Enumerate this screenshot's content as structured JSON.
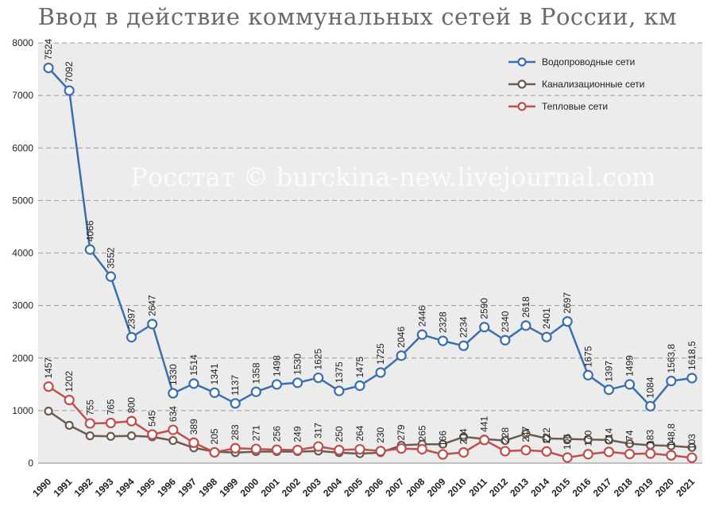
{
  "title": "Ввод в действие коммунальных сетей в России, км",
  "watermark": "Росстат © burckina-new.livejournal.com",
  "colors": {
    "water": "#3b6fb0",
    "sewer": "#6b5b51",
    "heat": "#c0504d",
    "plot_bg": "#ececec",
    "grid": "#9a9a9a"
  },
  "chart_data": {
    "type": "line",
    "title": "Ввод в действие коммунальных сетей в России, км",
    "xlabel": "",
    "ylabel": "",
    "ylim": [
      0,
      8000
    ],
    "yticks": [
      "0",
      "1000",
      "2000",
      "3000",
      "4000",
      "5000",
      "6000",
      "7000",
      "8000"
    ],
    "grid": true,
    "legend_position": "top-right",
    "categories": [
      "1990",
      "1991",
      "1992",
      "1993",
      "1994",
      "1995",
      "1996",
      "1997",
      "1998",
      "1999",
      "2000",
      "2001",
      "2002",
      "2003",
      "2004",
      "2005",
      "2006",
      "2007",
      "2008",
      "2009",
      "2010",
      "2011",
      "2012",
      "2013",
      "2014",
      "2015",
      "2016",
      "2017",
      "2018",
      "2019",
      "2020",
      "2021"
    ],
    "series": [
      {
        "name": "Водопроводные сети",
        "values": [
          7524,
          7092,
          4066,
          3552,
          2397,
          2647,
          1330,
          1514,
          1341,
          1137,
          1358,
          1498,
          1530,
          1625,
          1375,
          1475,
          1725,
          2046,
          2446,
          2328,
          2234,
          2590,
          2340,
          2618,
          2401,
          2697,
          1675,
          1397,
          1499,
          1084,
          1563.8,
          1618.5
        ],
        "labels": [
          "7524",
          "7092",
          "4066",
          "3552",
          "2397",
          "2647",
          "1330",
          "1514",
          "1341",
          "1137",
          "1358",
          "1498",
          "1530",
          "1625",
          "1375",
          "1475",
          "1725",
          "2046",
          "2446",
          "2328",
          "2234",
          "2590",
          "2340",
          "2618",
          "2401",
          "2697",
          "1675",
          "1397",
          "1499",
          "1084",
          "1563,8",
          "1618,5"
        ]
      },
      {
        "name": "Канализационные сети",
        "values": [
          990,
          720,
          520,
          510,
          520,
          500,
          430,
          290,
          220,
          200,
          220,
          220,
          220,
          230,
          200,
          180,
          200,
          340,
          360,
          360,
          500,
          460,
          430,
          560,
          470,
          460,
          450,
          440,
          370,
          340,
          330,
          300
        ]
      },
      {
        "name": "Тепловые сети",
        "values": [
          1457,
          1202,
          755,
          765,
          800,
          545,
          634,
          389,
          205,
          283,
          271,
          256,
          249,
          317,
          250,
          264,
          230,
          279,
          265,
          166,
          204,
          441,
          228,
          247,
          222,
          106,
          170,
          214,
          174,
          183,
          148.8,
          103
        ],
        "labels": [
          "1457",
          "1202",
          "755",
          "765",
          "800",
          "545",
          "634",
          "389",
          "205",
          "283",
          "271",
          "256",
          "249",
          "317",
          "250",
          "264",
          "230",
          "279",
          "265",
          "166",
          "204",
          "441",
          "228",
          "247",
          "222",
          "106",
          "170",
          "214",
          "174",
          "183",
          "148,8",
          "103"
        ]
      }
    ]
  }
}
